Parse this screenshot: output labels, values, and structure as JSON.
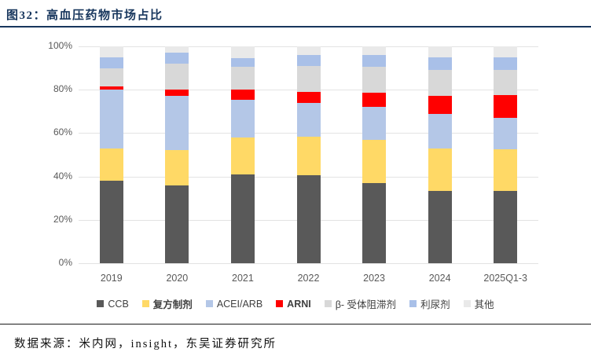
{
  "header": {
    "title": "图32：高血压药物市场占比"
  },
  "footer": {
    "source": "数据来源：米内网，insight，东吴证券研究所"
  },
  "accent_color": "#17365D",
  "chart_data": {
    "type": "bar",
    "stacked": true,
    "grid": true,
    "legend_position": "bottom",
    "ylim": [
      0,
      100
    ],
    "y_ticks": [
      "0%",
      "20%",
      "40%",
      "60%",
      "80%",
      "100%"
    ],
    "categories": [
      "2019",
      "2020",
      "2021",
      "2022",
      "2023",
      "2024",
      "2025Q1-3"
    ],
    "series": [
      {
        "name": "CCB",
        "color": "#595959",
        "bold": false,
        "values": [
          38,
          36,
          41,
          40.5,
          37,
          33.5,
          33.5
        ]
      },
      {
        "name": "复方制剂",
        "color": "#FFD966",
        "bold": true,
        "values": [
          15,
          16,
          17,
          18,
          20,
          19.5,
          19
        ]
      },
      {
        "name": "ACEI/ARB",
        "color": "#B4C7E7",
        "bold": false,
        "values": [
          27,
          25,
          17.5,
          15.5,
          15,
          16,
          14.5
        ]
      },
      {
        "name": "ARNI",
        "color": "#FF0000",
        "bold": true,
        "values": [
          1.5,
          3,
          4.5,
          5,
          6.5,
          8,
          10.5
        ]
      },
      {
        "name": "β- 受体阻滞剂",
        "color": "#D8D8D8",
        "bold": false,
        "values": [
          8.5,
          12,
          10.5,
          12,
          12,
          12,
          11.5
        ]
      },
      {
        "name": "利尿剂",
        "color": "#A9C0E8",
        "bold": false,
        "values": [
          5,
          5,
          4,
          5,
          5.5,
          6,
          6
        ]
      },
      {
        "name": "其他",
        "color": "#E9E9E9",
        "bold": false,
        "values": [
          5,
          3,
          5.5,
          4,
          4,
          5,
          5
        ]
      }
    ]
  }
}
